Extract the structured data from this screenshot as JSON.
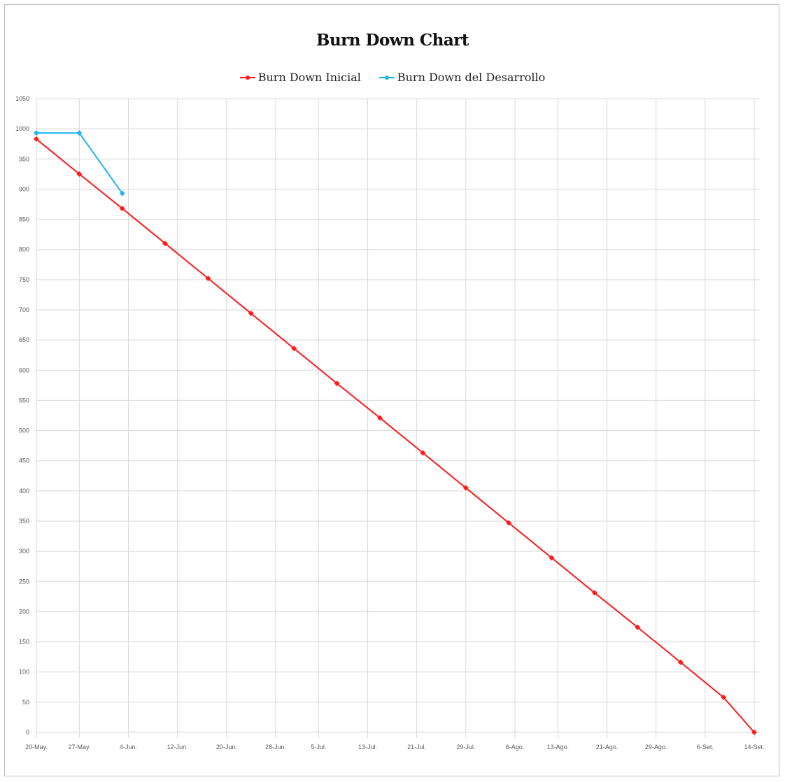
{
  "colors": {
    "initial": "#ff1a1a",
    "development": "#1fb5ee",
    "grid": "#d9d9d9",
    "axis_text": "#595959"
  },
  "chart_data": {
    "type": "line",
    "title": "Burn Down Chart",
    "xlabel": "",
    "ylabel": "",
    "ylim": [
      0,
      1050
    ],
    "y_ticks": [
      0,
      50,
      100,
      150,
      200,
      250,
      300,
      350,
      400,
      450,
      500,
      550,
      600,
      650,
      700,
      750,
      800,
      850,
      900,
      950,
      1000,
      1050
    ],
    "x_ticks": [
      "20-May.",
      "27-May.",
      "4-Jun.",
      "12-Jun.",
      "20-Jun.",
      "28-Jun.",
      "5-Jul.",
      "13-Jul.",
      "21-Jul.",
      "29-Jul.",
      "6-Ago.",
      "13-Ago.",
      "21-Ago.",
      "29-Ago.",
      "6-Set.",
      "14-Set."
    ],
    "grid": true,
    "legend_position": "top-center",
    "series": [
      {
        "name": "Burn Down Inicial",
        "color": "#ff1a1a",
        "marker": "diamond",
        "x": [
          "20-May.",
          "27-May.",
          "3-Jun.",
          "10-Jun.",
          "17-Jun.",
          "24-Jun.",
          "1-Jul.",
          "8-Jul.",
          "15-Jul.",
          "22-Jul.",
          "29-Jul.",
          "5-Ago.",
          "12-Ago.",
          "19-Ago.",
          "26-Ago.",
          "2-Set.",
          "9-Set.",
          "14-Set."
        ],
        "values": [
          983,
          925,
          868,
          810,
          752,
          694,
          636,
          578,
          521,
          463,
          405,
          347,
          289,
          231,
          174,
          116,
          58,
          0
        ]
      },
      {
        "name": "Burn Down del Desarrollo",
        "color": "#1fb5ee",
        "marker": "diamond",
        "x": [
          "20-May.",
          "27-May.",
          "3-Jun."
        ],
        "values": [
          993,
          993,
          893
        ]
      }
    ]
  }
}
